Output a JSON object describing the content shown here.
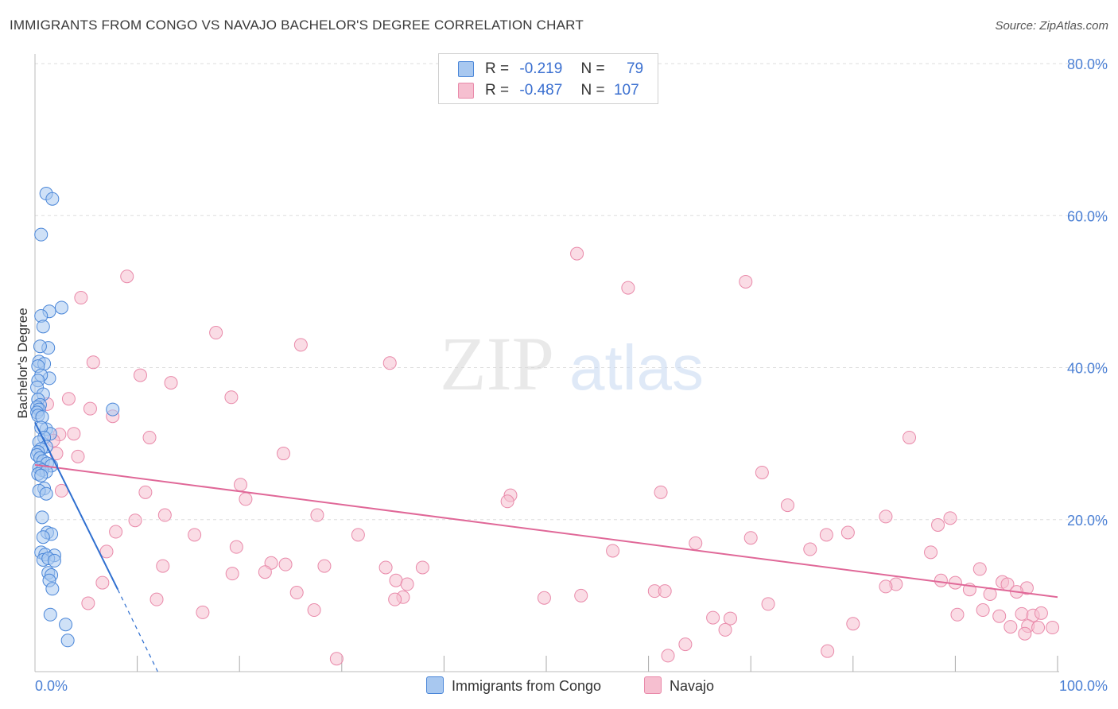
{
  "title": "IMMIGRANTS FROM CONGO VS NAVAJO BACHELOR'S DEGREE CORRELATION CHART",
  "source": "Source: ZipAtlas.com",
  "watermark": {
    "zip": "ZIP",
    "atlas": "atlas"
  },
  "legend": {
    "congo": {
      "r_label": "R =",
      "r_value": "-0.219",
      "n_label": "N =",
      "n_value": "79"
    },
    "navajo": {
      "r_label": "R =",
      "r_value": "-0.487",
      "n_label": "N =",
      "n_value": "107"
    }
  },
  "bottom_legend": {
    "congo": "Immigrants from Congo",
    "navajo": "Navajo"
  },
  "colors": {
    "congo_fill": "#a8c8f0",
    "congo_stroke": "#4a86d8",
    "congo_line": "#2f6fd0",
    "navajo_fill": "#f6bfd0",
    "navajo_stroke": "#e98aaa",
    "navajo_line": "#e06898",
    "tick_text": "#4a7fd4",
    "grid": "#dddddd"
  },
  "chart_data": {
    "type": "scatter",
    "title": "IMMIGRANTS FROM CONGO VS NAVAJO BACHELOR'S DEGREE CORRELATION CHART",
    "xlabel": "",
    "ylabel": "Bachelor's Degree",
    "xlim": [
      0,
      100
    ],
    "ylim": [
      0,
      80
    ],
    "x_tick_labels": [
      "0.0%",
      "100.0%"
    ],
    "y_ticks": [
      20,
      40,
      60,
      80
    ],
    "y_tick_labels": [
      "20.0%",
      "40.0%",
      "60.0%",
      "80.0%"
    ],
    "series": [
      {
        "name": "Immigrants from Congo",
        "r": -0.219,
        "n": 79,
        "trend": {
          "x": [
            0,
            8.1
          ],
          "y": [
            32.8,
            10.8
          ],
          "dashed_to": {
            "x": 12,
            "y": 0
          }
        },
        "points": [
          [
            1.1,
            62.9
          ],
          [
            1.7,
            62.2
          ],
          [
            0.6,
            57.5
          ],
          [
            2.6,
            47.9
          ],
          [
            1.4,
            47.4
          ],
          [
            0.6,
            46.8
          ],
          [
            0.8,
            45.4
          ],
          [
            1.3,
            42.6
          ],
          [
            0.5,
            42.8
          ],
          [
            0.4,
            40.8
          ],
          [
            0.9,
            40.5
          ],
          [
            0.3,
            40.2
          ],
          [
            1.4,
            38.6
          ],
          [
            0.6,
            39.0
          ],
          [
            0.3,
            38.3
          ],
          [
            0.2,
            37.4
          ],
          [
            0.8,
            36.5
          ],
          [
            0.3,
            35.8
          ],
          [
            0.5,
            35.1
          ],
          [
            0.2,
            34.8
          ],
          [
            0.4,
            34.5
          ],
          [
            0.2,
            34.1
          ],
          [
            0.3,
            33.7
          ],
          [
            0.7,
            33.5
          ],
          [
            7.6,
            34.5
          ],
          [
            1.1,
            31.9
          ],
          [
            1.5,
            31.3
          ],
          [
            0.6,
            32.1
          ],
          [
            0.9,
            30.8
          ],
          [
            0.4,
            30.2
          ],
          [
            1.1,
            29.6
          ],
          [
            0.6,
            29.3
          ],
          [
            0.3,
            28.9
          ],
          [
            0.2,
            28.5
          ],
          [
            0.5,
            28.1
          ],
          [
            0.8,
            27.7
          ],
          [
            1.2,
            27.4
          ],
          [
            1.6,
            27.1
          ],
          [
            0.4,
            26.8
          ],
          [
            0.7,
            26.5
          ],
          [
            1.1,
            26.3
          ],
          [
            0.3,
            26.0
          ],
          [
            0.6,
            25.8
          ],
          [
            0.9,
            24.1
          ],
          [
            0.4,
            23.8
          ],
          [
            1.1,
            23.4
          ],
          [
            0.7,
            20.3
          ],
          [
            1.2,
            18.3
          ],
          [
            1.6,
            18.1
          ],
          [
            0.8,
            17.7
          ],
          [
            0.6,
            15.7
          ],
          [
            1.0,
            15.4
          ],
          [
            1.9,
            15.3
          ],
          [
            0.8,
            14.7
          ],
          [
            1.3,
            14.9
          ],
          [
            1.9,
            14.6
          ],
          [
            1.3,
            13.0
          ],
          [
            1.6,
            12.7
          ],
          [
            1.4,
            12.0
          ],
          [
            1.7,
            10.9
          ],
          [
            1.5,
            7.5
          ],
          [
            3.0,
            6.2
          ],
          [
            3.2,
            4.1
          ]
        ]
      },
      {
        "name": "Navajo",
        "r": -0.487,
        "n": 107,
        "trend": {
          "x": [
            0,
            100
          ],
          "y": [
            27.2,
            9.8
          ]
        },
        "points": [
          [
            53.0,
            55.0
          ],
          [
            9.0,
            52.0
          ],
          [
            58.0,
            50.5
          ],
          [
            69.5,
            51.3
          ],
          [
            4.5,
            49.2
          ],
          [
            17.7,
            44.6
          ],
          [
            26.0,
            43.0
          ],
          [
            34.7,
            40.6
          ],
          [
            5.7,
            40.7
          ],
          [
            10.3,
            39.0
          ],
          [
            13.3,
            38.0
          ],
          [
            3.3,
            35.9
          ],
          [
            19.2,
            36.1
          ],
          [
            5.4,
            34.6
          ],
          [
            7.6,
            33.6
          ],
          [
            1.2,
            35.2
          ],
          [
            3.8,
            31.3
          ],
          [
            11.2,
            30.8
          ],
          [
            2.4,
            31.2
          ],
          [
            85.5,
            30.8
          ],
          [
            1.8,
            30.4
          ],
          [
            2.1,
            28.7
          ],
          [
            4.2,
            28.3
          ],
          [
            24.3,
            28.7
          ],
          [
            71.1,
            26.2
          ],
          [
            20.1,
            24.6
          ],
          [
            2.6,
            23.8
          ],
          [
            10.8,
            23.6
          ],
          [
            46.5,
            23.2
          ],
          [
            61.2,
            23.6
          ],
          [
            46.2,
            22.4
          ],
          [
            20.6,
            22.7
          ],
          [
            73.6,
            21.9
          ],
          [
            12.7,
            20.6
          ],
          [
            27.6,
            20.6
          ],
          [
            83.2,
            20.4
          ],
          [
            89.5,
            20.2
          ],
          [
            9.8,
            19.9
          ],
          [
            88.3,
            19.3
          ],
          [
            7.9,
            18.4
          ],
          [
            79.5,
            18.3
          ],
          [
            77.4,
            18.0
          ],
          [
            15.6,
            18.0
          ],
          [
            31.6,
            18.0
          ],
          [
            70.0,
            17.6
          ],
          [
            64.6,
            16.9
          ],
          [
            75.8,
            16.1
          ],
          [
            19.7,
            16.4
          ],
          [
            56.5,
            15.9
          ],
          [
            7.0,
            15.8
          ],
          [
            87.6,
            15.7
          ],
          [
            23.1,
            14.3
          ],
          [
            24.5,
            14.1
          ],
          [
            12.5,
            13.9
          ],
          [
            28.3,
            13.9
          ],
          [
            34.3,
            13.7
          ],
          [
            37.9,
            13.7
          ],
          [
            92.4,
            13.5
          ],
          [
            19.3,
            12.9
          ],
          [
            22.5,
            13.1
          ],
          [
            88.6,
            12.0
          ],
          [
            35.3,
            12.0
          ],
          [
            90.0,
            11.7
          ],
          [
            84.2,
            11.5
          ],
          [
            94.6,
            11.8
          ],
          [
            6.6,
            11.7
          ],
          [
            83.2,
            11.2
          ],
          [
            36.4,
            11.5
          ],
          [
            95.1,
            11.5
          ],
          [
            60.6,
            10.6
          ],
          [
            97.0,
            11.0
          ],
          [
            91.4,
            10.8
          ],
          [
            96.0,
            10.5
          ],
          [
            25.6,
            10.4
          ],
          [
            93.4,
            10.2
          ],
          [
            36.0,
            9.8
          ],
          [
            61.6,
            10.6
          ],
          [
            49.8,
            9.7
          ],
          [
            71.7,
            8.9
          ],
          [
            35.2,
            9.5
          ],
          [
            11.9,
            9.5
          ],
          [
            5.2,
            9.0
          ],
          [
            16.4,
            7.8
          ],
          [
            27.3,
            8.1
          ],
          [
            92.7,
            8.1
          ],
          [
            96.5,
            7.6
          ],
          [
            97.6,
            7.4
          ],
          [
            90.2,
            7.5
          ],
          [
            68.0,
            7.0
          ],
          [
            66.3,
            7.1
          ],
          [
            94.3,
            7.3
          ],
          [
            67.5,
            5.5
          ],
          [
            80.0,
            6.3
          ],
          [
            98.4,
            7.7
          ],
          [
            97.1,
            6.0
          ],
          [
            98.1,
            5.8
          ],
          [
            99.5,
            5.8
          ],
          [
            95.4,
            5.9
          ],
          [
            96.8,
            5.0
          ],
          [
            63.6,
            3.6
          ],
          [
            77.5,
            2.7
          ],
          [
            61.9,
            2.1
          ],
          [
            29.5,
            1.7
          ],
          [
            53.4,
            10.0
          ]
        ]
      }
    ]
  }
}
